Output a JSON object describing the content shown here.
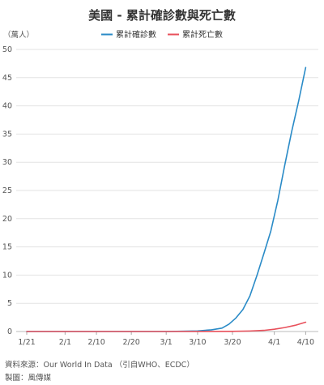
{
  "chart_data": {
    "type": "line",
    "title": "美國 - 累計確診數與死亡數",
    "ylabel": "（萬人）",
    "xlabel": "",
    "x_ticks": [
      "1/21",
      "2/1",
      "2/10",
      "2/20",
      "3/1",
      "3/10",
      "3/20",
      "4/1",
      "4/10"
    ],
    "y_ticks": [
      0,
      5,
      10,
      15,
      20,
      25,
      30,
      35,
      40,
      45,
      50
    ],
    "ylim": [
      0,
      50
    ],
    "xlim": [
      "1/21",
      "4/12"
    ],
    "grid": "horizontal",
    "legend_position": "top-center",
    "series": [
      {
        "name": "累計確診數",
        "color": "#2a8bc7",
        "points": [
          [
            "1/21",
            0
          ],
          [
            "2/1",
            0
          ],
          [
            "2/10",
            0
          ],
          [
            "2/20",
            0
          ],
          [
            "3/1",
            0
          ],
          [
            "3/10",
            0.1
          ],
          [
            "3/14",
            0.3
          ],
          [
            "3/17",
            0.6
          ],
          [
            "3/19",
            1.3
          ],
          [
            "3/21",
            2.4
          ],
          [
            "3/23",
            3.9
          ],
          [
            "3/25",
            6.3
          ],
          [
            "3/27",
            9.9
          ],
          [
            "3/29",
            13.8
          ],
          [
            "3/31",
            17.8
          ],
          [
            "4/2",
            23.2
          ],
          [
            "4/4",
            29.5
          ],
          [
            "4/6",
            35.5
          ],
          [
            "4/8",
            40.9
          ],
          [
            "4/10",
            46.8
          ]
        ]
      },
      {
        "name": "累計死亡數",
        "color": "#e8505b",
        "points": [
          [
            "1/21",
            0
          ],
          [
            "3/1",
            0
          ],
          [
            "3/20",
            0.02
          ],
          [
            "3/25",
            0.09
          ],
          [
            "3/29",
            0.2
          ],
          [
            "4/1",
            0.4
          ],
          [
            "4/4",
            0.7
          ],
          [
            "4/7",
            1.1
          ],
          [
            "4/10",
            1.65
          ]
        ]
      }
    ]
  },
  "footer": {
    "source": "資料來源：Our World In Data （引自WHO、ECDC）",
    "credit": "製圖：風傳媒"
  }
}
